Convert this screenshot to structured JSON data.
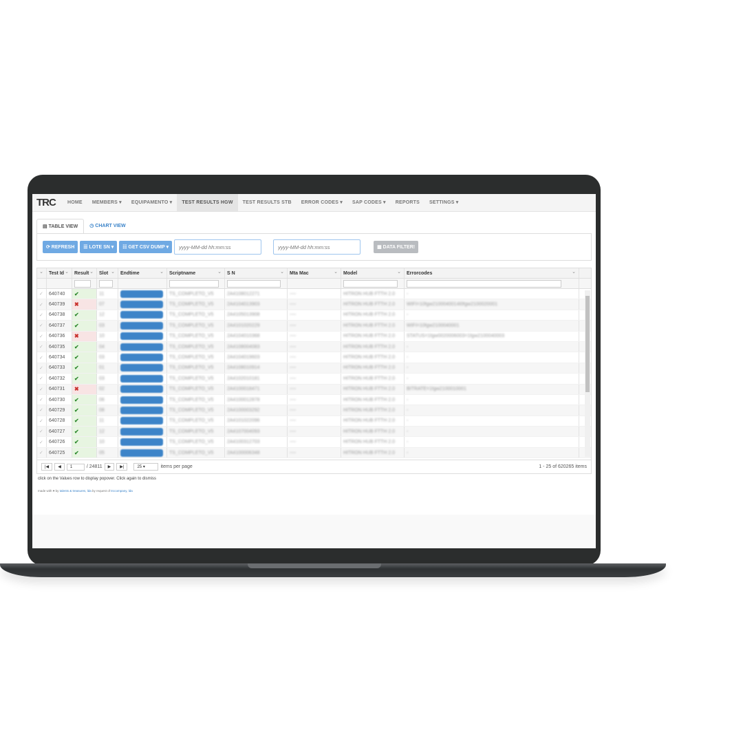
{
  "nav": {
    "logo": "TRC",
    "items": [
      "HOME",
      "MEMBERS ▾",
      "EQUIPAMENTO ▾",
      "TEST RESULTS HGW",
      "TEST RESULTS STB",
      "ERROR CODES ▾",
      "SAP CODES ▾",
      "REPORTS",
      "SETTINGS ▾"
    ],
    "active": 3
  },
  "tabs": [
    {
      "icon": "table-icon",
      "label": "TABLE VIEW"
    },
    {
      "icon": "clock-icon",
      "label": "CHART VIEW"
    }
  ],
  "toolbar": {
    "refresh": "⟳ REFRESH",
    "lote": "☰ LOTE SN ▾",
    "csv": "☷ GET CSV DUMP ▾",
    "date_placeholder": "yyyy-MM-dd hh:mm:ss",
    "filter": "▦ DATA FILTER!"
  },
  "columns": [
    "",
    "Test Id",
    "Result",
    "Slot",
    "Endtime",
    "Scriptname",
    "S N",
    "Mta Mac",
    "Model",
    "Errorcodes"
  ],
  "rows": [
    {
      "id": "640740",
      "ok": true,
      "slot": "11",
      "script": "TS_COMPLETO_V5",
      "sn": "2A4108012271",
      "mac": "----",
      "model": "HITRON HUB FTTH 2.0",
      "err": "-"
    },
    {
      "id": "640739",
      "ok": false,
      "slot": "07",
      "script": "TS_COMPLETO_V5",
      "sn": "2A4104013903",
      "mac": "----",
      "model": "HITRON HUB FTTH 2.0",
      "err": "WIFI=10fgw2100040014I0fgw2100020001"
    },
    {
      "id": "640738",
      "ok": true,
      "slot": "12",
      "script": "TS_COMPLETO_V5",
      "sn": "2A4105013908",
      "mac": "----",
      "model": "HITRON HUB FTTH 2.0",
      "err": "-"
    },
    {
      "id": "640737",
      "ok": true,
      "slot": "03",
      "script": "TS_COMPLETO_V5",
      "sn": "2A4101020229",
      "mac": "----",
      "model": "HITRON HUB FTTH 2.0",
      "err": "WIFI=10fgw2100040001"
    },
    {
      "id": "640736",
      "ok": false,
      "slot": "10",
      "script": "TS_COMPLETO_V5",
      "sn": "2A4104010368",
      "mac": "----",
      "model": "HITRON HUB FTTH 2.0",
      "err": "STATUS=1fgw0020006003=1fgw2100040003"
    },
    {
      "id": "640735",
      "ok": true,
      "slot": "04",
      "script": "TS_COMPLETO_V5",
      "sn": "2A4108004083",
      "mac": "----",
      "model": "HITRON HUB FTTH 2.0",
      "err": "-"
    },
    {
      "id": "640734",
      "ok": true,
      "slot": "03",
      "script": "TS_COMPLETO_V5",
      "sn": "2A4104019603",
      "mac": "----",
      "model": "HITRON HUB FTTH 2.0",
      "err": "-"
    },
    {
      "id": "640733",
      "ok": true,
      "slot": "01",
      "script": "TS_COMPLETO_V5",
      "sn": "2A4108010914",
      "mac": "----",
      "model": "HITRON HUB FTTH 2.0",
      "err": "-"
    },
    {
      "id": "640732",
      "ok": true,
      "slot": "03",
      "script": "TS_COMPLETO_V5",
      "sn": "2A4102010181",
      "mac": "----",
      "model": "HITRON HUB FTTH 2.0",
      "err": "-"
    },
    {
      "id": "640731",
      "ok": false,
      "slot": "02",
      "script": "TS_COMPLETO_V5",
      "sn": "2A4100018471",
      "mac": "----",
      "model": "HITRON HUB FTTH 2.0",
      "err": "BITRATE=1fgw2100010001"
    },
    {
      "id": "640730",
      "ok": true,
      "slot": "06",
      "script": "TS_COMPLETO_V5",
      "sn": "2A4100012878",
      "mac": "----",
      "model": "HITRON HUB FTTH 2.0",
      "err": "-"
    },
    {
      "id": "640729",
      "ok": true,
      "slot": "08",
      "script": "TS_COMPLETO_V5",
      "sn": "2A4100003292",
      "mac": "----",
      "model": "HITRON HUB FTTH 2.0",
      "err": "-"
    },
    {
      "id": "640728",
      "ok": true,
      "slot": "11",
      "script": "TS_COMPLETO_V5",
      "sn": "2A4101022096",
      "mac": "----",
      "model": "HITRON HUB FTTH 2.0",
      "err": "-"
    },
    {
      "id": "640727",
      "ok": true,
      "slot": "12",
      "script": "TS_COMPLETO_V5",
      "sn": "2A4107004093",
      "mac": "----",
      "model": "HITRON HUB FTTH 2.0",
      "err": "-"
    },
    {
      "id": "640726",
      "ok": true,
      "slot": "10",
      "script": "TS_COMPLETO_V5",
      "sn": "2A4100312703",
      "mac": "----",
      "model": "HITRON HUB FTTH 2.0",
      "err": "-"
    },
    {
      "id": "640725",
      "ok": true,
      "slot": "05",
      "script": "TS_COMPLETO_V5",
      "sn": "2A4100006348",
      "mac": "----",
      "model": "HITRON HUB FTTH 2.0",
      "err": "-"
    }
  ],
  "pager": {
    "page": "1",
    "total_pages": "/ 24811",
    "per_page": "25",
    "per_page_label": "items per page",
    "summary": "1 - 25 of 620265 items"
  },
  "note": "click on the Values row to display popover. Click again to dismiss",
  "footer": {
    "pre": "made with ♥ by",
    "link1": "talents & treasures, lda",
    "mid": "by request of",
    "link2": "trccompany, lda"
  },
  "colors": {
    "accent": "#6fa9e3",
    "pass": "#2f8a2f",
    "fail": "#c9302c",
    "bezel": "#2b2d2d"
  }
}
